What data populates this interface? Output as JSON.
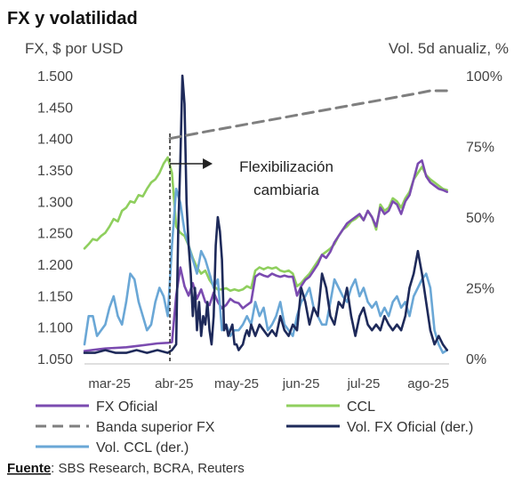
{
  "chart_data": {
    "type": "line",
    "title": "FX y volatilidad",
    "ylabel": "FX, $ por USD",
    "y2label": "Vol. 5d anualiz, %",
    "ylim": [
      1050,
      1500
    ],
    "y2lim": [
      0,
      100
    ],
    "yticks": [
      "1.050",
      "1.100",
      "1.150",
      "1.200",
      "1.250",
      "1.300",
      "1.350",
      "1.400",
      "1.450",
      "1.500"
    ],
    "y2ticks": [
      "0%",
      "25%",
      "50%",
      "75%",
      "100%"
    ],
    "xticks": [
      "mar-25",
      "abr-25",
      "may-25",
      "jun-25",
      "jul-25",
      "ago-25"
    ],
    "x_range_days": [
      0,
      175
    ],
    "annotation": {
      "text_line1": "Flexibilización",
      "text_line2": "cambiaria",
      "x_day": 41
    },
    "series": [
      {
        "name": "FX Oficial",
        "axis": "left",
        "color": "#7b4bb0",
        "x": [
          0,
          5,
          10,
          15,
          20,
          25,
          30,
          35,
          40,
          42,
          44,
          46,
          48,
          50,
          52,
          54,
          56,
          58,
          60,
          62,
          64,
          66,
          68,
          70,
          72,
          74,
          76,
          78,
          80,
          82,
          84,
          86,
          88,
          90,
          92,
          94,
          96,
          98,
          100,
          102,
          104,
          106,
          108,
          110,
          112,
          114,
          116,
          118,
          120,
          122,
          124,
          126,
          128,
          130,
          132,
          134,
          136,
          138,
          140,
          142,
          144,
          146,
          148,
          150,
          152,
          154,
          156,
          158,
          160,
          162,
          164,
          166,
          168,
          170,
          172,
          174
        ],
        "y": [
          1062,
          1064,
          1066,
          1067,
          1068,
          1070,
          1072,
          1074,
          1075,
          1076,
          1150,
          1195,
          1165,
          1150,
          1170,
          1145,
          1160,
          1140,
          1135,
          1155,
          1140,
          1130,
          1135,
          1145,
          1140,
          1138,
          1130,
          1135,
          1140,
          1180,
          1185,
          1182,
          1180,
          1185,
          1182,
          1180,
          1182,
          1180,
          1180,
          1150,
          1165,
          1175,
          1180,
          1190,
          1200,
          1215,
          1210,
          1220,
          1235,
          1245,
          1255,
          1265,
          1270,
          1275,
          1280,
          1270,
          1285,
          1275,
          1260,
          1290,
          1280,
          1285,
          1300,
          1295,
          1280,
          1300,
          1310,
          1335,
          1360,
          1365,
          1340,
          1330,
          1325,
          1320,
          1318,
          1315
        ]
      },
      {
        "name": "CCL",
        "axis": "left",
        "color": "#8fcf5e",
        "x": [
          0,
          2,
          4,
          6,
          8,
          10,
          12,
          14,
          16,
          18,
          20,
          22,
          24,
          26,
          28,
          30,
          32,
          34,
          36,
          38,
          40,
          42,
          44,
          46,
          48,
          50,
          52,
          54,
          56,
          58,
          60,
          62,
          64,
          66,
          68,
          70,
          72,
          74,
          76,
          78,
          80,
          82,
          84,
          86,
          88,
          90,
          92,
          94,
          96,
          98,
          100,
          102,
          104,
          106,
          108,
          110,
          112,
          114,
          116,
          118,
          120,
          122,
          124,
          126,
          128,
          130,
          132,
          134,
          136,
          138,
          140,
          142,
          144,
          146,
          148,
          150,
          152,
          154,
          156,
          158,
          160,
          162,
          164,
          166,
          168,
          170,
          172,
          174
        ],
        "y": [
          1225,
          1232,
          1240,
          1238,
          1245,
          1250,
          1260,
          1272,
          1268,
          1285,
          1290,
          1300,
          1298,
          1310,
          1308,
          1320,
          1330,
          1335,
          1345,
          1360,
          1370,
          1345,
          1260,
          1250,
          1245,
          1230,
          1210,
          1195,
          1185,
          1190,
          1175,
          1165,
          1160,
          1160,
          1162,
          1158,
          1160,
          1158,
          1160,
          1165,
          1162,
          1190,
          1195,
          1192,
          1195,
          1193,
          1195,
          1190,
          1188,
          1190,
          1185,
          1165,
          1170,
          1178,
          1185,
          1195,
          1205,
          1215,
          1220,
          1225,
          1232,
          1245,
          1255,
          1260,
          1268,
          1272,
          1278,
          1270,
          1285,
          1275,
          1255,
          1295,
          1285,
          1290,
          1305,
          1300,
          1290,
          1305,
          1315,
          1335,
          1345,
          1355,
          1342,
          1335,
          1330,
          1325,
          1320,
          1318
        ]
      },
      {
        "name": "Banda superior FX",
        "axis": "left",
        "color": "#7f7f7f",
        "dashed": true,
        "x": [
          41,
          60,
          80,
          100,
          120,
          140,
          160,
          166,
          170,
          174
        ],
        "y": [
          1400,
          1412,
          1424,
          1436,
          1448,
          1460,
          1472,
          1476,
          1476,
          1476
        ]
      },
      {
        "name": "Vol. FX Oficial (der.)",
        "axis": "right",
        "color": "#1e2a5a",
        "x": [
          0,
          5,
          10,
          15,
          20,
          25,
          30,
          35,
          40,
          42,
          44,
          45,
          46,
          47,
          48,
          49,
          50,
          51,
          52,
          53,
          54,
          55,
          56,
          57,
          58,
          59,
          60,
          61,
          62,
          63,
          64,
          65,
          66,
          67,
          68,
          69,
          70,
          71,
          72,
          73,
          74,
          75,
          76,
          77,
          78,
          79,
          80,
          82,
          84,
          86,
          88,
          90,
          92,
          94,
          96,
          98,
          100,
          102,
          104,
          106,
          108,
          110,
          112,
          114,
          116,
          118,
          120,
          122,
          124,
          126,
          128,
          130,
          132,
          134,
          136,
          138,
          140,
          142,
          144,
          146,
          148,
          150,
          152,
          154,
          156,
          158,
          160,
          162,
          164,
          166,
          168,
          170,
          172,
          174
        ],
        "y": [
          2,
          2,
          3,
          2,
          2,
          3,
          2,
          3,
          2,
          3,
          5,
          45,
          70,
          100,
          90,
          55,
          40,
          30,
          15,
          25,
          10,
          20,
          8,
          15,
          12,
          20,
          10,
          5,
          15,
          40,
          50,
          45,
          35,
          10,
          12,
          8,
          10,
          12,
          5,
          5,
          3,
          4,
          5,
          8,
          10,
          8,
          12,
          8,
          12,
          10,
          8,
          10,
          8,
          15,
          10,
          8,
          12,
          10,
          25,
          20,
          12,
          18,
          15,
          30,
          25,
          15,
          12,
          20,
          18,
          25,
          15,
          8,
          15,
          18,
          12,
          10,
          12,
          10,
          15,
          12,
          10,
          12,
          10,
          15,
          25,
          30,
          38,
          30,
          20,
          10,
          5,
          8,
          5,
          3
        ]
      },
      {
        "name": "Vol. CCL (der.)",
        "axis": "right",
        "color": "#6aa7d6",
        "x": [
          0,
          2,
          4,
          6,
          8,
          10,
          12,
          14,
          16,
          18,
          20,
          22,
          24,
          26,
          28,
          30,
          32,
          34,
          36,
          38,
          40,
          42,
          44,
          46,
          48,
          50,
          52,
          54,
          56,
          58,
          60,
          62,
          64,
          66,
          68,
          70,
          72,
          74,
          76,
          78,
          80,
          82,
          84,
          86,
          88,
          90,
          92,
          94,
          96,
          98,
          100,
          102,
          104,
          106,
          108,
          110,
          112,
          114,
          116,
          118,
          120,
          122,
          124,
          126,
          128,
          130,
          132,
          134,
          136,
          138,
          140,
          142,
          144,
          146,
          148,
          150,
          152,
          154,
          156,
          158,
          160,
          162,
          164,
          166,
          168,
          170,
          172,
          174
        ],
        "y": [
          5,
          15,
          15,
          8,
          10,
          12,
          18,
          22,
          15,
          12,
          20,
          30,
          28,
          20,
          15,
          10,
          12,
          20,
          25,
          22,
          15,
          40,
          60,
          55,
          45,
          40,
          35,
          30,
          38,
          35,
          30,
          25,
          28,
          10,
          12,
          8,
          10,
          10,
          12,
          15,
          12,
          20,
          15,
          18,
          10,
          12,
          15,
          20,
          12,
          10,
          8,
          15,
          20,
          22,
          25,
          18,
          15,
          12,
          12,
          20,
          28,
          25,
          22,
          20,
          25,
          28,
          22,
          25,
          20,
          18,
          20,
          15,
          18,
          15,
          20,
          22,
          18,
          20,
          15,
          22,
          25,
          28,
          30,
          25,
          10,
          5,
          2,
          3
        ]
      }
    ],
    "legend": [
      {
        "label": "FX Oficial",
        "series": 0
      },
      {
        "label": "CCL",
        "series": 1
      },
      {
        "label": "Banda superior FX",
        "series": 2
      },
      {
        "label": "Vol. FX Oficial (der.)",
        "series": 3
      },
      {
        "label": "Vol. CCL (der.)",
        "series": 4
      }
    ],
    "legend_placement": "bottom"
  },
  "source": {
    "label": "Fuente",
    "text": ": SBS Research, BCRA, Reuters"
  },
  "colors": {
    "axis": "#bfbfbf",
    "text": "#444444"
  }
}
